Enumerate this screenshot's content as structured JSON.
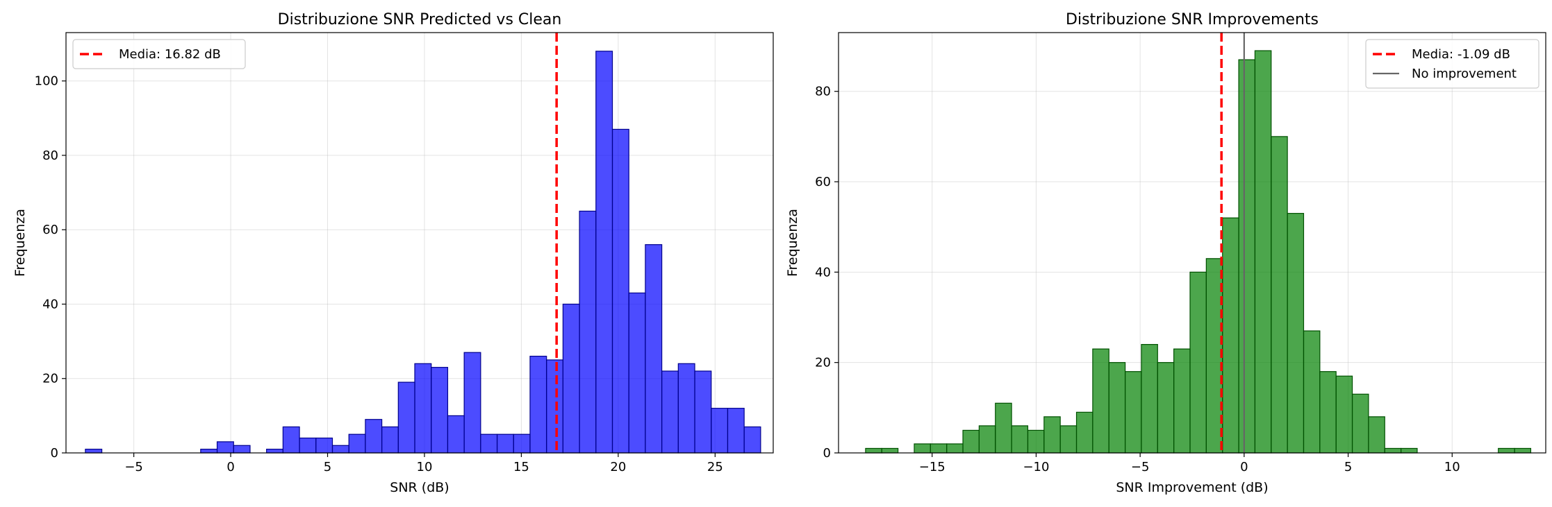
{
  "chart_data": [
    {
      "type": "bar",
      "title": "Distribuzione SNR Predicted vs Clean",
      "xlabel": "SNR (dB)",
      "ylabel": "Frequenza",
      "xlim": [
        -8.5,
        28.0
      ],
      "ylim": [
        0,
        113
      ],
      "xticks": [
        -5,
        0,
        5,
        10,
        15,
        20,
        25
      ],
      "xtick_labels": [
        "−5",
        "0",
        "5",
        "10",
        "15",
        "20",
        "25"
      ],
      "yticks": [
        0,
        20,
        40,
        60,
        80,
        100
      ],
      "ytick_labels": [
        "0",
        "20",
        "40",
        "60",
        "80",
        "100"
      ],
      "grid": true,
      "legend_position": "top-left",
      "bar_color": "#0000ff",
      "bin_start": -7.5,
      "bin_width": 0.85,
      "values": [
        1,
        0,
        0,
        0,
        0,
        0,
        0,
        1,
        3,
        2,
        0,
        1,
        7,
        4,
        4,
        2,
        5,
        9,
        7,
        19,
        24,
        23,
        10,
        27,
        5,
        5,
        5,
        26,
        25,
        40,
        65,
        108,
        87,
        43,
        56,
        22,
        24,
        22,
        12,
        12,
        7
      ],
      "reference_lines": [
        {
          "label": "Media: 16.82 dB",
          "x": 16.82,
          "color": "#ff0000",
          "style": "dashed"
        }
      ]
    },
    {
      "type": "bar",
      "title": "Distribuzione SNR Improvements",
      "xlabel": "SNR Improvement (dB)",
      "ylabel": "Frequenza",
      "xlim": [
        -19.5,
        14.5
      ],
      "ylim": [
        0,
        93
      ],
      "xticks": [
        -15,
        -10,
        -5,
        0,
        5,
        10
      ],
      "xtick_labels": [
        "−15",
        "−10",
        "−5",
        "0",
        "5",
        "10"
      ],
      "yticks": [
        0,
        20,
        40,
        60,
        80
      ],
      "ytick_labels": [
        "0",
        "20",
        "40",
        "60",
        "80"
      ],
      "grid": true,
      "legend_position": "top-right",
      "bar_color": "#008000",
      "bin_start": -18.2,
      "bin_width": 0.78,
      "values": [
        1,
        1,
        0,
        2,
        2,
        2,
        5,
        6,
        11,
        6,
        5,
        8,
        6,
        9,
        23,
        20,
        18,
        24,
        20,
        23,
        40,
        43,
        52,
        87,
        89,
        70,
        53,
        27,
        18,
        17,
        13,
        8,
        1,
        1,
        0,
        0,
        0,
        0,
        0,
        1,
        1
      ],
      "reference_lines": [
        {
          "label": "Media: -1.09 dB",
          "x": -1.09,
          "color": "#ff0000",
          "style": "dashed"
        },
        {
          "label": "No improvement",
          "x": 0,
          "color": "#666666",
          "style": "solid"
        }
      ]
    }
  ]
}
